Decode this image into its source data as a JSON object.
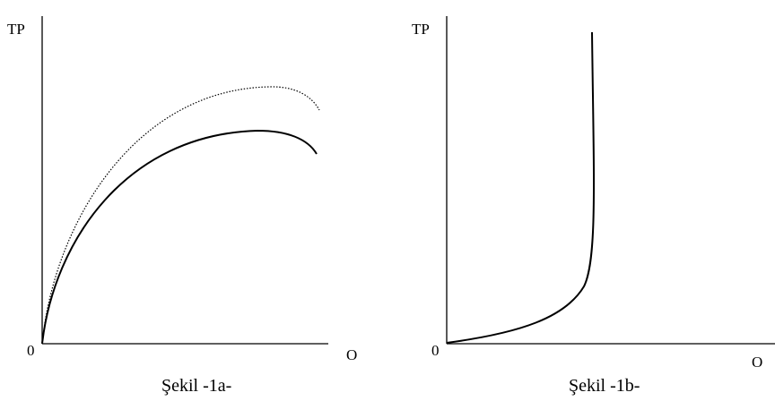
{
  "panels": [
    {
      "id": "a",
      "y_axis_label": "TP",
      "x_axis_label": "O",
      "origin_label": "0",
      "caption": "Şekil -1a-",
      "curves": [
        {
          "name": "upper",
          "style": "dotted"
        },
        {
          "name": "lower",
          "style": "solid"
        }
      ]
    },
    {
      "id": "b",
      "y_axis_label": "TP",
      "x_axis_label": "O",
      "origin_label": "0",
      "caption": "Şekil -1b-",
      "curves": [
        {
          "name": "steep",
          "style": "solid"
        }
      ]
    }
  ],
  "colors": {
    "ink": "#000000",
    "background": "#ffffff"
  }
}
